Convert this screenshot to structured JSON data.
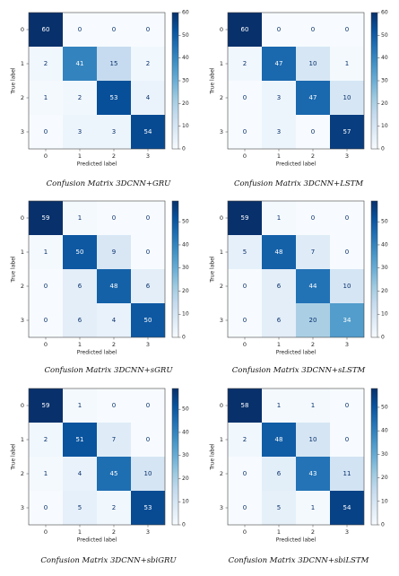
{
  "colors": {
    "low": "#f7fbff",
    "high": "#08306b",
    "text_light": "#ffffff",
    "text_dark": "#08306b",
    "axis": "#222222"
  },
  "chart_data": [
    {
      "type": "heatmap",
      "caption": "Confusion Matrix 3DCNN+GRU",
      "xlabel": "Predicted label",
      "ylabel": "True label",
      "x_ticks": [
        "0",
        "1",
        "2",
        "3"
      ],
      "y_ticks": [
        "0",
        "1",
        "2",
        "3"
      ],
      "colorbar_ticks": [
        0,
        10,
        20,
        30,
        40,
        50,
        60
      ],
      "vmax": 60,
      "matrix": [
        [
          60,
          0,
          0,
          0
        ],
        [
          2,
          41,
          15,
          2
        ],
        [
          1,
          2,
          53,
          4
        ],
        [
          0,
          3,
          3,
          54
        ]
      ]
    },
    {
      "type": "heatmap",
      "caption": "Confusion Matrix 3DCNN+LSTM",
      "xlabel": "Predicted label",
      "ylabel": "True label",
      "x_ticks": [
        "0",
        "1",
        "2",
        "3"
      ],
      "y_ticks": [
        "0",
        "1",
        "2",
        "3"
      ],
      "colorbar_ticks": [
        0,
        10,
        20,
        30,
        40,
        50,
        60
      ],
      "vmax": 60,
      "matrix": [
        [
          60,
          0,
          0,
          0
        ],
        [
          2,
          47,
          10,
          1
        ],
        [
          0,
          3,
          47,
          10
        ],
        [
          0,
          3,
          0,
          57
        ]
      ]
    },
    {
      "type": "heatmap",
      "caption": "Confusion Matrix 3DCNN+sGRU",
      "xlabel": "Predicted label",
      "ylabel": "True label",
      "x_ticks": [
        "0",
        "1",
        "2",
        "3"
      ],
      "y_ticks": [
        "0",
        "1",
        "2",
        "3"
      ],
      "colorbar_ticks": [
        0,
        10,
        20,
        30,
        40,
        50
      ],
      "vmax": 59,
      "matrix": [
        [
          59,
          1,
          0,
          0
        ],
        [
          1,
          50,
          9,
          0
        ],
        [
          0,
          6,
          48,
          6
        ],
        [
          0,
          6,
          4,
          50
        ]
      ]
    },
    {
      "type": "heatmap",
      "caption": "Confusion Matrix 3DCNN+sLSTM",
      "xlabel": "Predicted label",
      "ylabel": "True label",
      "x_ticks": [
        "0",
        "1",
        "2",
        "3"
      ],
      "y_ticks": [
        "0",
        "1",
        "2",
        "3"
      ],
      "colorbar_ticks": [
        0,
        10,
        20,
        30,
        40,
        50
      ],
      "vmax": 59,
      "matrix": [
        [
          59,
          1,
          0,
          0
        ],
        [
          5,
          48,
          7,
          0
        ],
        [
          0,
          6,
          44,
          10
        ],
        [
          0,
          6,
          20,
          34
        ]
      ]
    },
    {
      "type": "heatmap",
      "caption": "Confusion Matrix 3DCNN+sbiGRU",
      "xlabel": "Predicted label",
      "ylabel": "True label",
      "x_ticks": [
        "0",
        "1",
        "2",
        "3"
      ],
      "y_ticks": [
        "0",
        "1",
        "2",
        "3"
      ],
      "colorbar_ticks": [
        0,
        10,
        20,
        30,
        40,
        50
      ],
      "vmax": 59,
      "matrix": [
        [
          59,
          1,
          0,
          0
        ],
        [
          2,
          51,
          7,
          0
        ],
        [
          1,
          4,
          45,
          10
        ],
        [
          0,
          5,
          2,
          53
        ]
      ]
    },
    {
      "type": "heatmap",
      "caption": "Confusion Matrix 3DCNN+sbiLSTM",
      "xlabel": "Predicted label",
      "ylabel": "True label",
      "x_ticks": [
        "0",
        "1",
        "2",
        "3"
      ],
      "y_ticks": [
        "0",
        "1",
        "2",
        "3"
      ],
      "colorbar_ticks": [
        0,
        10,
        20,
        30,
        40,
        50
      ],
      "vmax": 58,
      "matrix": [
        [
          58,
          1,
          1,
          0
        ],
        [
          2,
          48,
          10,
          0
        ],
        [
          0,
          6,
          43,
          11
        ],
        [
          0,
          5,
          1,
          54
        ]
      ]
    }
  ]
}
